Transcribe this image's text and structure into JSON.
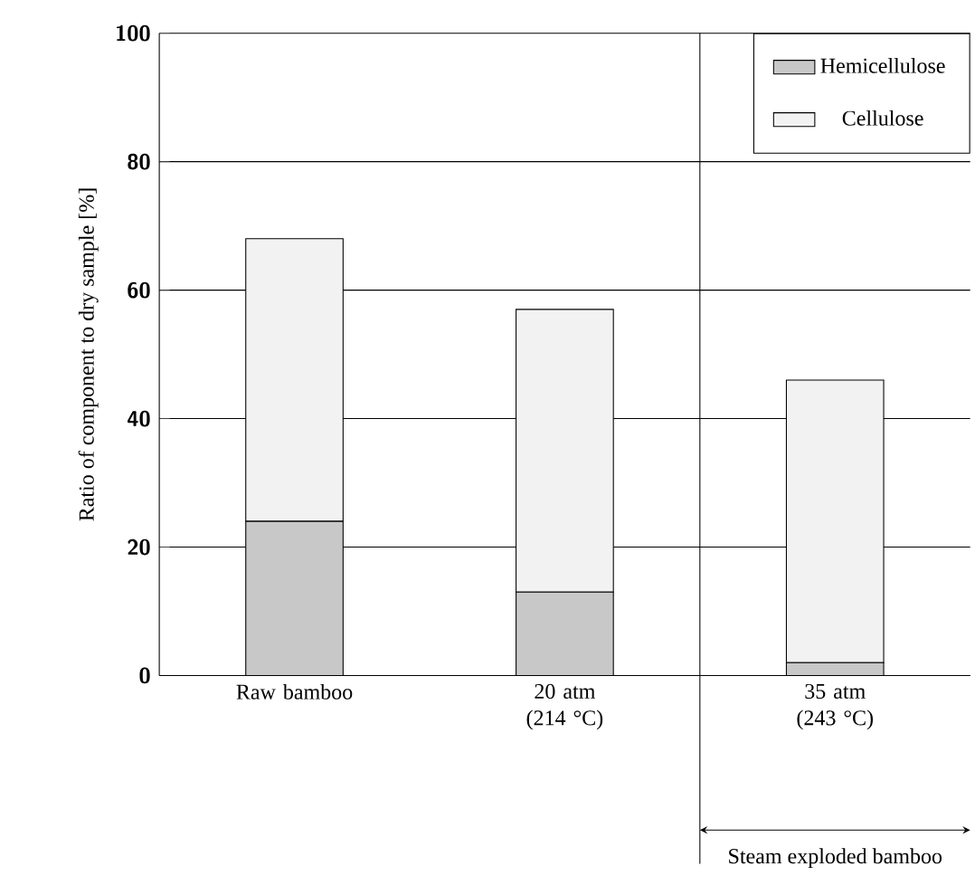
{
  "chart_data": {
    "type": "bar",
    "stacked": true,
    "ylabel": "Ratio of component to dry sample [%]",
    "categories": [
      "Raw bamboo",
      "20 atm (214 °C)",
      "35 atm (243 °C)"
    ],
    "series": [
      {
        "name": "Hemicellulose",
        "color": "#c8c8c8",
        "values": [
          24,
          13,
          2
        ]
      },
      {
        "name": "Cellulose",
        "color": "#f2f2f2",
        "values": [
          44,
          44,
          44
        ]
      }
    ],
    "ylim": [
      0,
      100
    ],
    "yticks": [
      0,
      20,
      40,
      60,
      80,
      100
    ],
    "grid": "y",
    "legend": "top right",
    "annotations": [
      "Steam exploded bamboo"
    ]
  }
}
